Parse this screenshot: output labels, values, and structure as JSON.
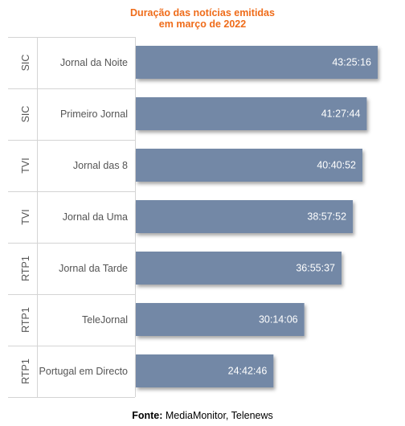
{
  "chart_data": {
    "type": "bar",
    "orientation": "horizontal",
    "title_line1": "Duração das notícias emitidas",
    "title_line2": "em março de 2022",
    "groups": [
      "SIC",
      "SIC",
      "TVI",
      "TVI",
      "RTP1",
      "RTP1",
      "RTP1"
    ],
    "categories": [
      "Jornal da Noite",
      "Primeiro Jornal",
      "Jornal das 8",
      "Jornal da Uma",
      "Jornal da Tarde",
      "TeleJornal",
      "Portugal em Directo"
    ],
    "values_label": [
      "43:25:16",
      "41:27:44",
      "40:40:52",
      "38:57:52",
      "36:55:37",
      "30:14:06",
      "24:42:46"
    ],
    "values_hours": [
      43.42,
      41.46,
      40.68,
      38.96,
      36.93,
      30.24,
      24.71
    ],
    "xlim": [
      0,
      43.42
    ],
    "bar_color": "#7388a6",
    "grid": false
  },
  "source": {
    "label": "Fonte:",
    "text": " MediaMonitor, Telenews"
  }
}
